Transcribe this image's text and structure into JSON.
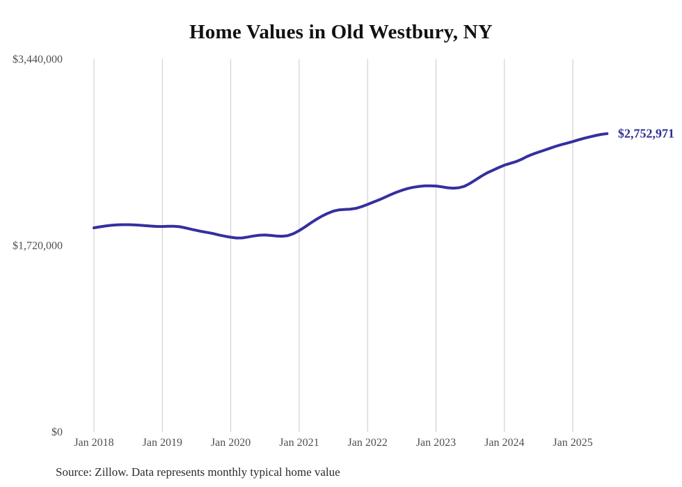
{
  "chart": {
    "title": "Home Values in Old Westbury, NY",
    "source": "Source: Zillow. Data represents monthly typical home value",
    "end_label": "$2,752,971",
    "colors": {
      "line": "#34309e",
      "end_label_text": "#2e2e93",
      "gridline": "#c9c9c9",
      "tick_text": "#4f4f4f",
      "title_text": "#111111",
      "source_text": "#2b2b2b",
      "background": "#ffffff"
    }
  },
  "chart_data": {
    "type": "line",
    "title": "Home Values in Old Westbury, NY",
    "xlabel": "",
    "ylabel": "",
    "x_start_month": "2018-01",
    "x_end_month": "2025-07",
    "months_per_tick": 12,
    "x_tick_labels": [
      "Jan 2018",
      "Jan 2019",
      "Jan 2020",
      "Jan 2021",
      "Jan 2022",
      "Jan 2023",
      "Jan 2024",
      "Jan 2025"
    ],
    "y_ticks": [
      {
        "value": 0,
        "label": "$0"
      },
      {
        "value": 1720000,
        "label": "$1,720,000"
      },
      {
        "value": 3440000,
        "label": "$3,440,000"
      }
    ],
    "ylim": [
      0,
      3440000
    ],
    "grid": "vertical-only",
    "legend": "none",
    "series": [
      {
        "name": "Typical home value (USD)",
        "values": [
          1884000,
          1893000,
          1901000,
          1907000,
          1911000,
          1913000,
          1913000,
          1911000,
          1908000,
          1904000,
          1900000,
          1897000,
          1896000,
          1898000,
          1899000,
          1894000,
          1884000,
          1872000,
          1860000,
          1849000,
          1840000,
          1830000,
          1817000,
          1806000,
          1797000,
          1790000,
          1791000,
          1799000,
          1809000,
          1816000,
          1818000,
          1814000,
          1809000,
          1806000,
          1812000,
          1830000,
          1858000,
          1892000,
          1928000,
          1962000,
          1992000,
          2018000,
          2038000,
          2050000,
          2054000,
          2056000,
          2064000,
          2080000,
          2100000,
          2121000,
          2142000,
          2165000,
          2189000,
          2211000,
          2230000,
          2246000,
          2258000,
          2266000,
          2271000,
          2272000,
          2270000,
          2263000,
          2254000,
          2250000,
          2254000,
          2268000,
          2295000,
          2328000,
          2362000,
          2392000,
          2416000,
          2440000,
          2462000,
          2478000,
          2494000,
          2516000,
          2543000,
          2564000,
          2582000,
          2600000,
          2618000,
          2636000,
          2652000,
          2666000,
          2680000,
          2696000,
          2711000,
          2724000,
          2736000,
          2746000,
          2752971
        ]
      }
    ],
    "latest_value": 2752971,
    "latest_value_label": "$2,752,971"
  }
}
